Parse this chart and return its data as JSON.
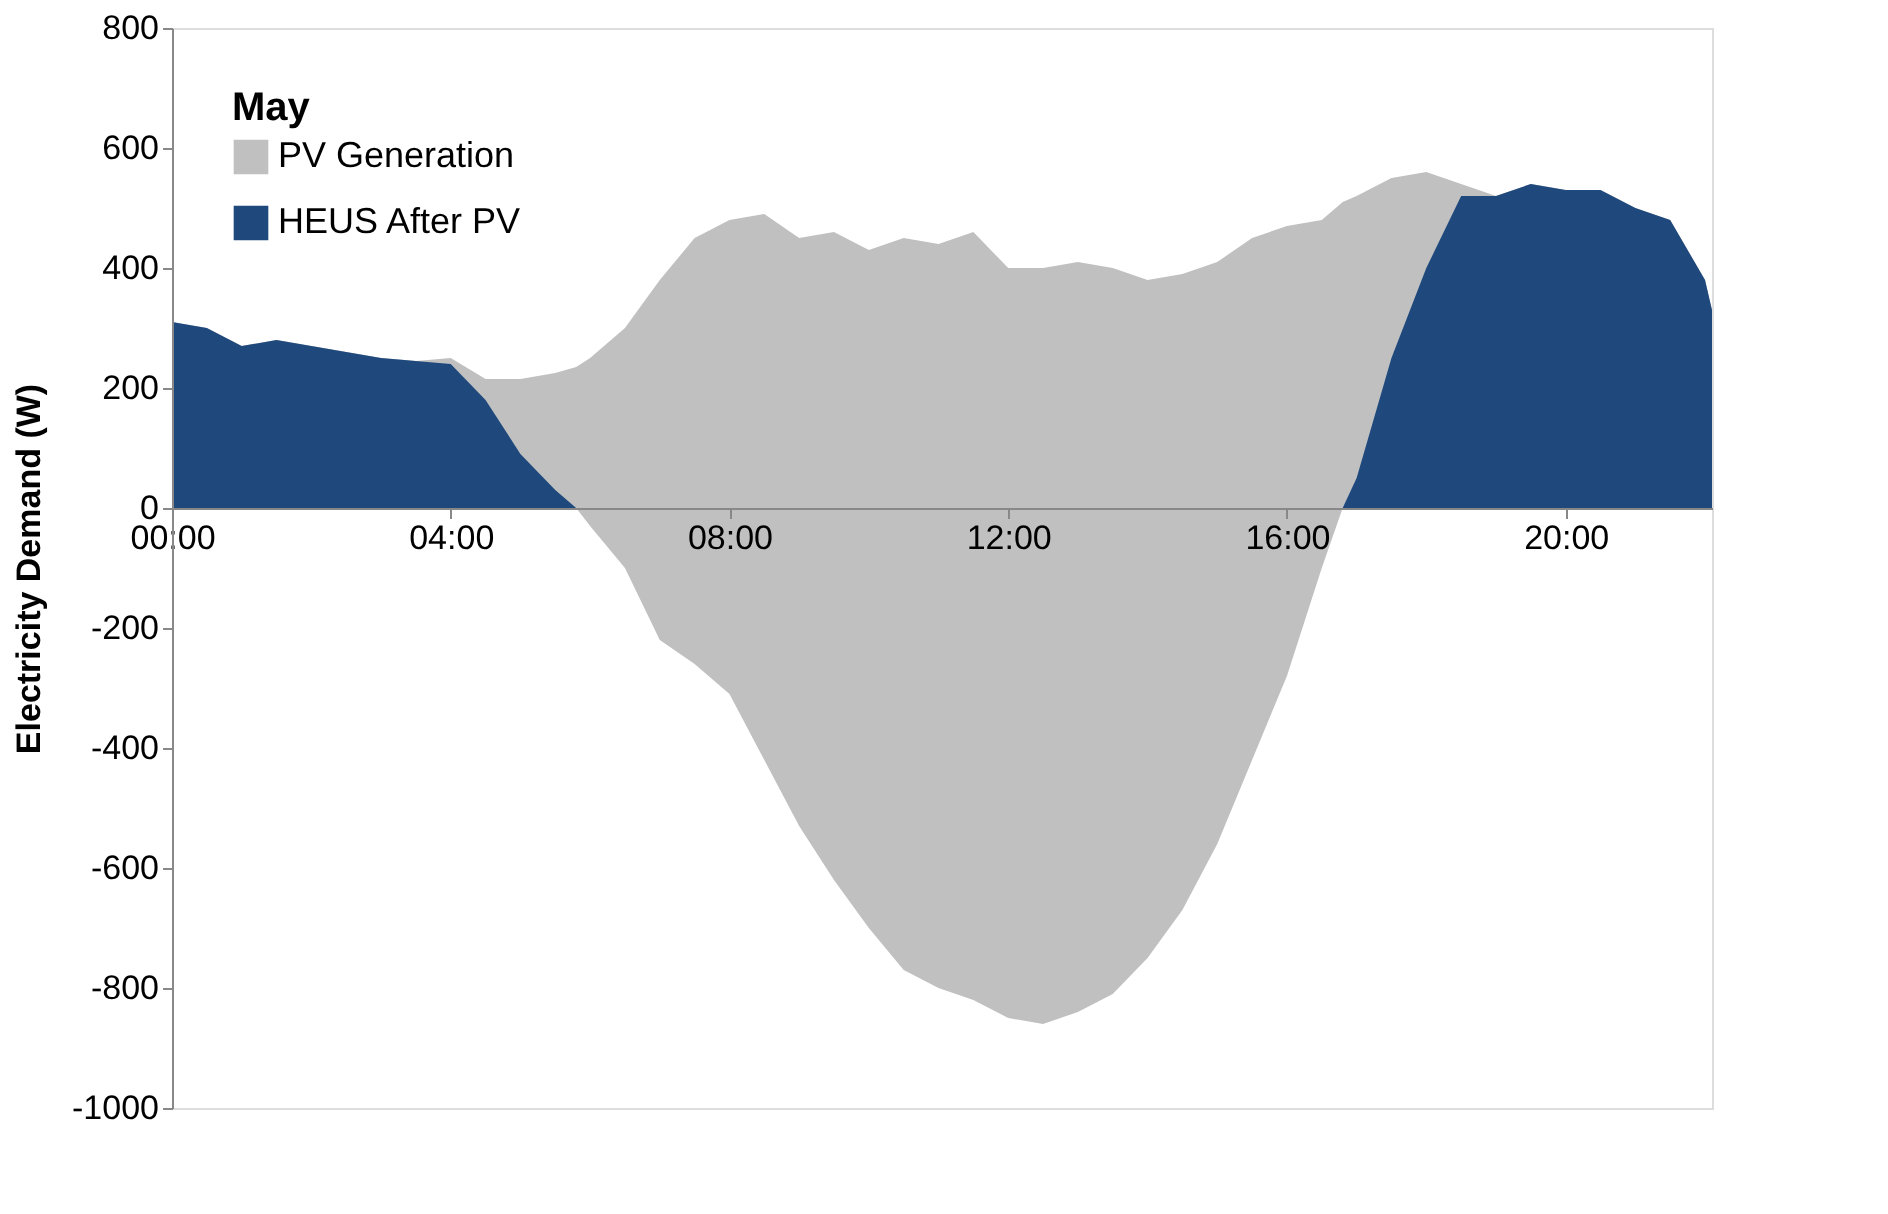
{
  "chart_data": {
    "type": "area",
    "ylabel": "Electricity Demand (W)",
    "legend_title": "May",
    "legend": "top left",
    "x": [
      0,
      0.5,
      1,
      1.5,
      2,
      2.5,
      3,
      3.5,
      4,
      4.5,
      5,
      5.5,
      5.8,
      6,
      6.5,
      7,
      7.5,
      8,
      8.5,
      9,
      9.5,
      10,
      10.5,
      11,
      11.5,
      12,
      12.5,
      13,
      13.5,
      14,
      14.5,
      15,
      15.5,
      16,
      16.5,
      16.8,
      17,
      17.5,
      18,
      18.5,
      19,
      19.5,
      20,
      20.5,
      21,
      21.5,
      22,
      22.1
    ],
    "series": [
      {
        "name": "PV Generation",
        "color": "#c0c0c0",
        "values": [
          310,
          300,
          270,
          280,
          270,
          260,
          250,
          245,
          250,
          215,
          215,
          225,
          235,
          250,
          300,
          380,
          450,
          480,
          490,
          450,
          460,
          430,
          450,
          440,
          460,
          400,
          400,
          410,
          400,
          380,
          390,
          410,
          450,
          470,
          480,
          510,
          520,
          550,
          560,
          540,
          520,
          540,
          530,
          530,
          500,
          480,
          380,
          330
        ]
      },
      {
        "color": "#c0c0c0",
        "values": [
          null,
          null,
          null,
          null,
          null,
          null,
          null,
          null,
          null,
          null,
          null,
          null,
          0,
          -30,
          -100,
          -220,
          -260,
          -310,
          -420,
          -530,
          -620,
          -700,
          -770,
          -800,
          -820,
          -850,
          -860,
          -840,
          -810,
          -750,
          -670,
          -560,
          -420,
          -280,
          -100,
          0,
          null,
          null,
          null,
          null,
          null,
          null,
          null,
          null,
          null,
          null,
          null,
          null
        ]
      },
      {
        "name": "HEUS After PV",
        "color": "#1f497d",
        "values": [
          310,
          300,
          270,
          280,
          270,
          260,
          250,
          245,
          240,
          180,
          90,
          30,
          0,
          null,
          null,
          null,
          null,
          null,
          null,
          null,
          null,
          null,
          null,
          null,
          null,
          null,
          null,
          null,
          null,
          null,
          null,
          null,
          null,
          null,
          null,
          0,
          50,
          250,
          400,
          520,
          520,
          540,
          530,
          530,
          500,
          480,
          380,
          330
        ]
      }
    ],
    "xlim": [
      0,
      22.1
    ],
    "xticks": [
      {
        "value": 0,
        "label": "00:00"
      },
      {
        "value": 4,
        "label": "04:00"
      },
      {
        "value": 8,
        "label": "08:00"
      },
      {
        "value": 12,
        "label": "12:00"
      },
      {
        "value": 16,
        "label": "16:00"
      },
      {
        "value": 20,
        "label": "20:00"
      }
    ],
    "ylim": [
      -1000,
      800
    ],
    "yticks": [
      -1000,
      -800,
      -600,
      -400,
      -200,
      0,
      200,
      400,
      600,
      800
    ],
    "grid": false
  }
}
